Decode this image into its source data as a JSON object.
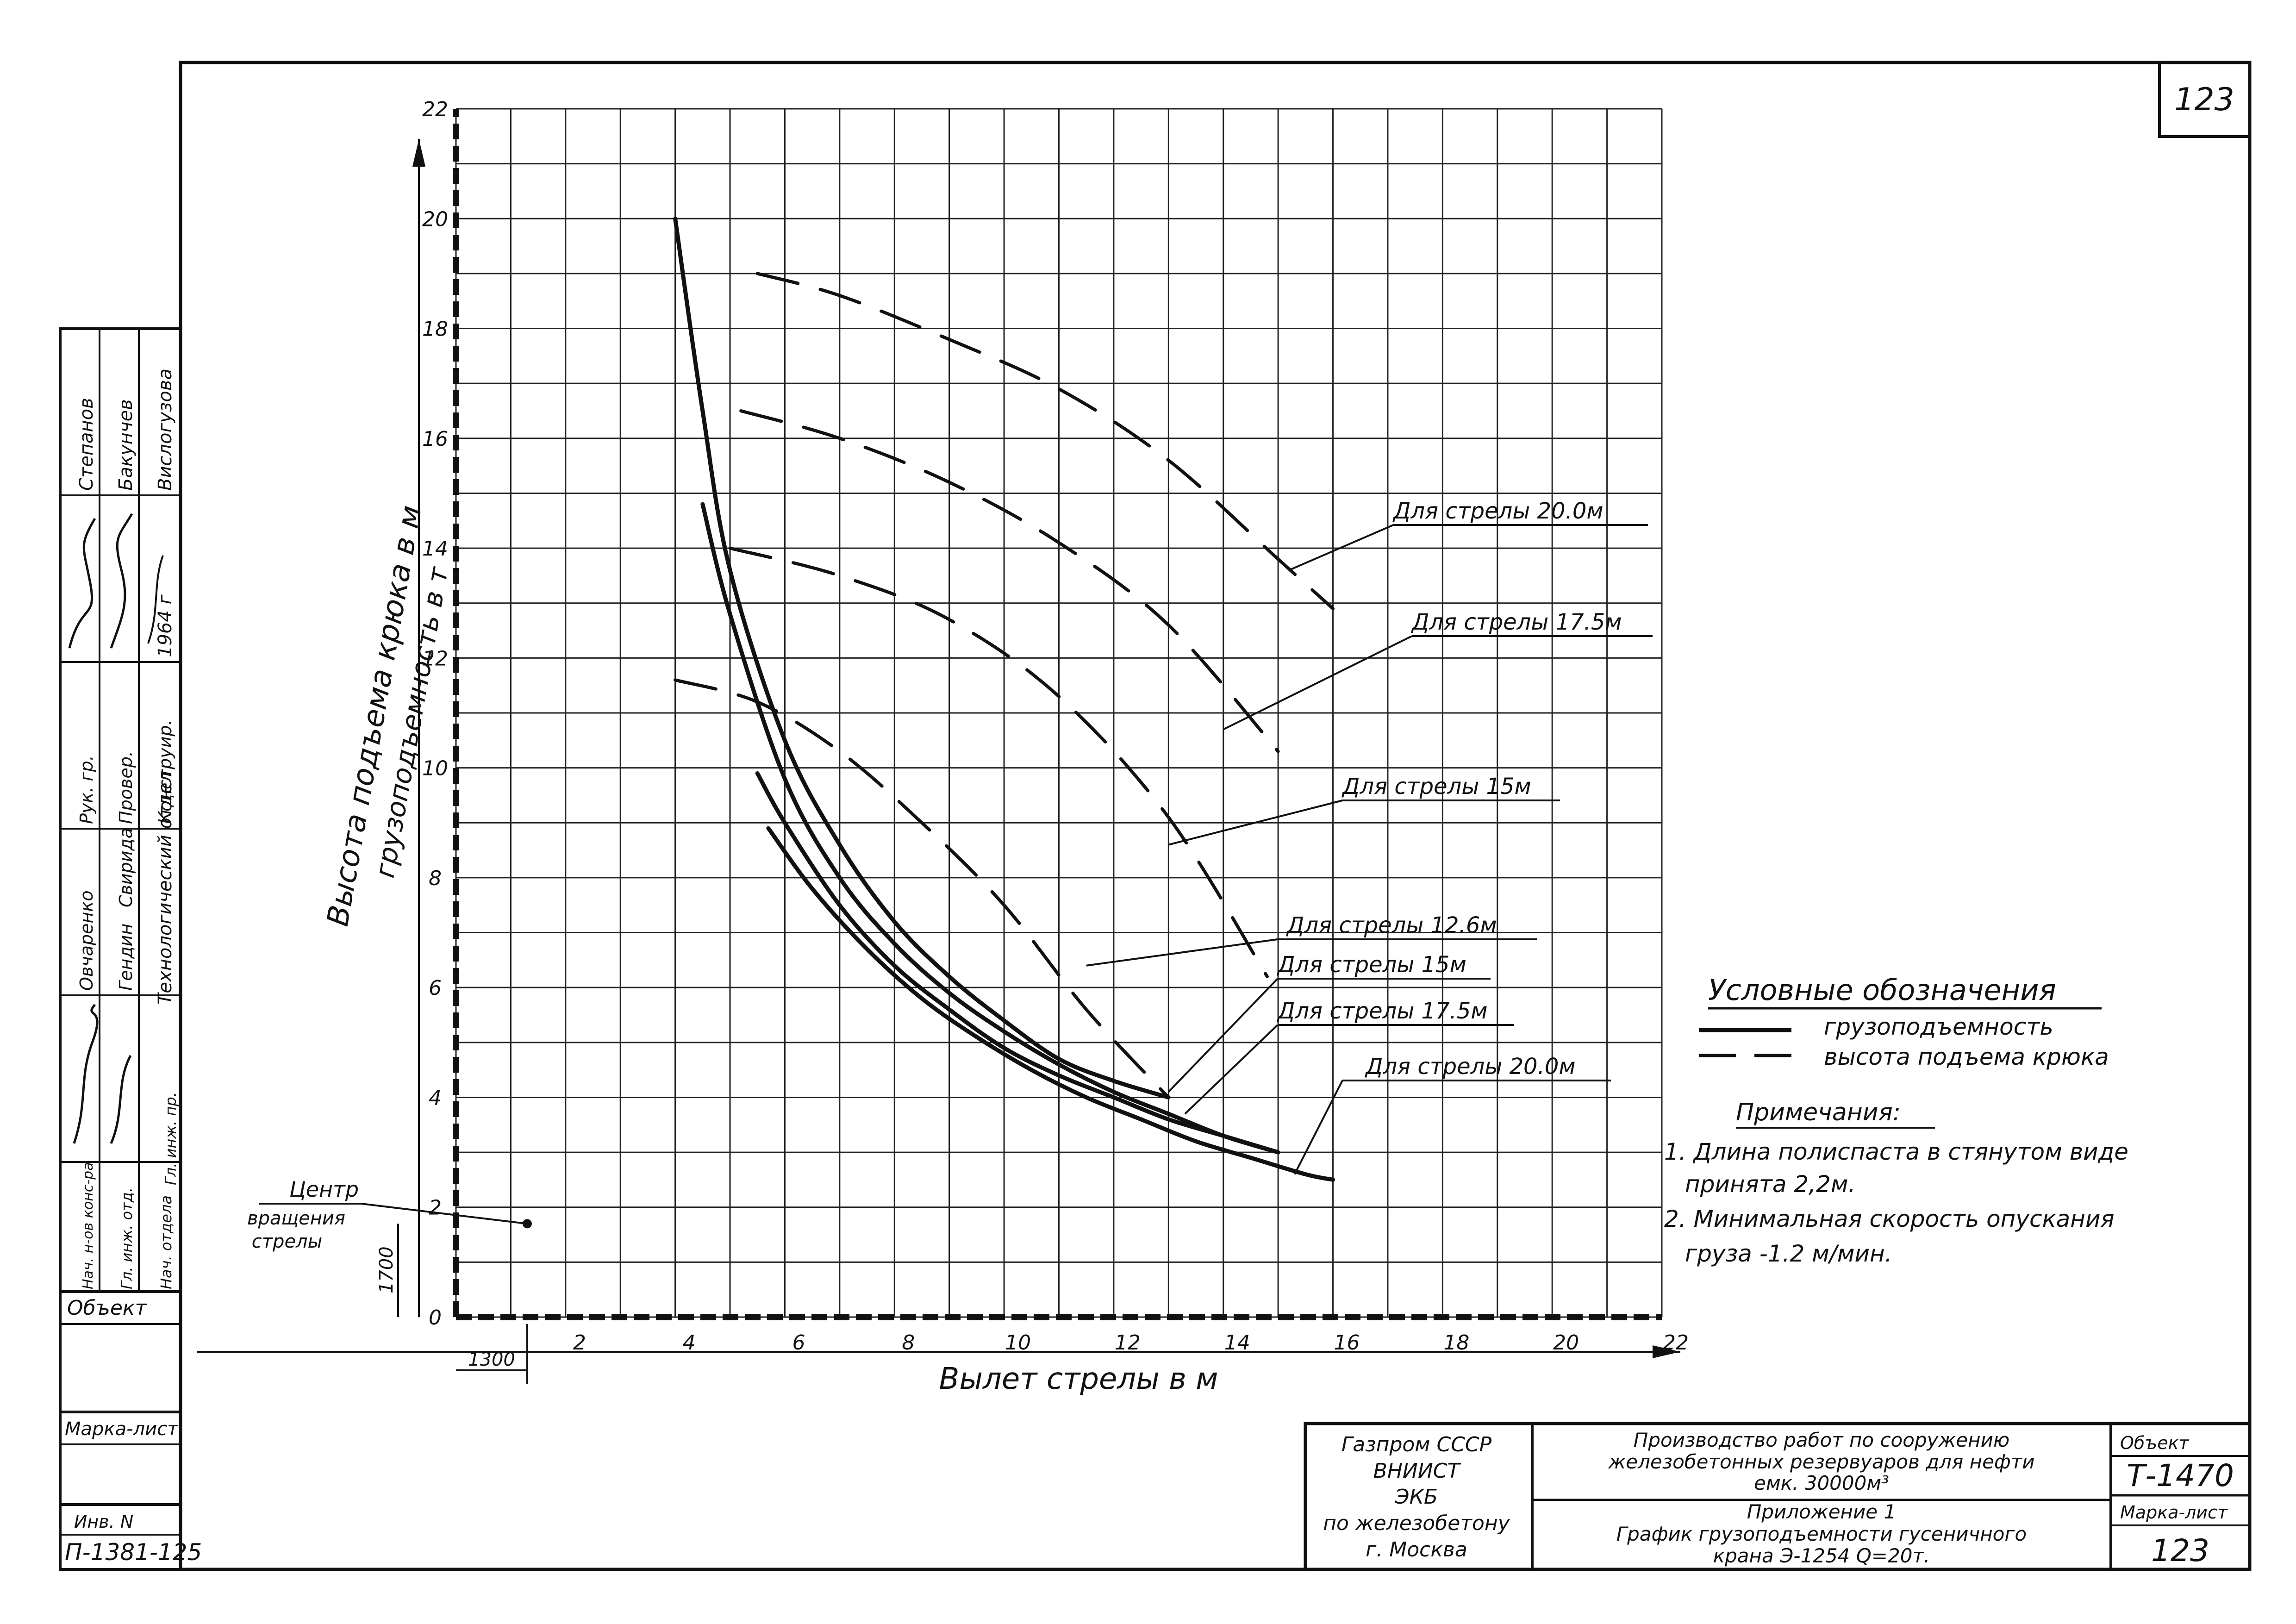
{
  "sheet_number": "123",
  "chart_data": {
    "type": "line",
    "xlabel": "Вылет стрелы в м",
    "ylabel_line1": "Высота подъема крюка в м",
    "ylabel_line2": "грузоподъемность в т",
    "xlim": [
      0,
      22
    ],
    "ylim": [
      0,
      22
    ],
    "grid": true,
    "x_ticks": [
      2,
      4,
      6,
      8,
      10,
      12,
      14,
      16,
      18,
      20,
      22
    ],
    "y_ticks": [
      0,
      2,
      4,
      6,
      8,
      10,
      12,
      14,
      16,
      18,
      20,
      22
    ],
    "dim_x_label": "1300",
    "dim_y_label": "1700",
    "rotation_center": {
      "label_line1": "Центр",
      "label_line2": "вращения",
      "label_line3": "стрелы",
      "x": 1.3,
      "y": 1.7
    },
    "series": [
      {
        "name": "Для стрелы 20.0м",
        "kind": "hook_height",
        "style": "dashed",
        "x": [
          5.5,
          7,
          9,
          11,
          13,
          15,
          16
        ],
        "y": [
          19.0,
          18.6,
          17.8,
          16.9,
          15.6,
          13.8,
          12.9
        ]
      },
      {
        "name": "Для стрелы 17.5м",
        "kind": "hook_height",
        "style": "dashed",
        "x": [
          5.2,
          7,
          9,
          11,
          13,
          15
        ],
        "y": [
          16.5,
          16.0,
          15.2,
          14.1,
          12.6,
          10.3
        ]
      },
      {
        "name": "Для стрелы 15м",
        "kind": "hook_height",
        "style": "dashed",
        "x": [
          5.0,
          7,
          9,
          11,
          13,
          14.8
        ],
        "y": [
          14.0,
          13.5,
          12.7,
          11.3,
          9.1,
          6.2
        ]
      },
      {
        "name": "Для стрелы 12.6м",
        "kind": "hook_height",
        "style": "dashed",
        "x": [
          4.0,
          5.5,
          7.0,
          8.5,
          10.0,
          11.5,
          13.0
        ],
        "y": [
          11.6,
          11.2,
          10.3,
          9.0,
          7.5,
          5.6,
          4.0
        ]
      },
      {
        "name": "Для стрелы 12.6м",
        "kind": "capacity",
        "style": "solid",
        "x": [
          4.0,
          4.5,
          5.0,
          6.0,
          7.0,
          8.0,
          9.0,
          10.0,
          11.0,
          12.0,
          13.0
        ],
        "y": [
          20.0,
          16.5,
          13.6,
          10.5,
          8.6,
          7.2,
          6.2,
          5.4,
          4.7,
          4.3,
          4.0
        ]
      },
      {
        "name": "Для стрелы 15м",
        "kind": "capacity",
        "style": "solid",
        "x": [
          4.5,
          5.0,
          6.0,
          7.0,
          8.0,
          9.0,
          10.0,
          11.0,
          12.0,
          13.0,
          14.0,
          15.0
        ],
        "y": [
          14.8,
          12.8,
          9.8,
          8.0,
          6.8,
          5.9,
          5.2,
          4.6,
          4.1,
          3.7,
          3.3,
          3.0
        ]
      },
      {
        "name": "Для стрелы 17.5м",
        "kind": "capacity",
        "style": "solid",
        "x": [
          5.5,
          6.0,
          7.0,
          8.0,
          9.0,
          10.0,
          11.0,
          12.0,
          13.0,
          14.0,
          15.0
        ],
        "y": [
          9.9,
          9.0,
          7.5,
          6.4,
          5.6,
          4.9,
          4.4,
          4.0,
          3.6,
          3.3,
          3.0
        ]
      },
      {
        "name": "Для стрелы 20.0м",
        "kind": "capacity",
        "style": "solid",
        "x": [
          5.7,
          6.5,
          7.5,
          8.5,
          9.5,
          10.5,
          11.5,
          12.5,
          13.5,
          14.5,
          15.5,
          16.0
        ],
        "y": [
          8.9,
          7.8,
          6.7,
          5.8,
          5.1,
          4.5,
          4.0,
          3.6,
          3.2,
          2.9,
          2.6,
          2.5
        ]
      }
    ],
    "callouts": [
      {
        "text": "Для стрелы 20.0м"
      },
      {
        "text": "Для стрелы 17.5м"
      },
      {
        "text": "Для стрелы 15м"
      },
      {
        "text": "Для стрелы 12.6м"
      },
      {
        "text": "Для стрелы 15м"
      },
      {
        "text": "Для стрелы 17.5м"
      },
      {
        "text": "Для стрелы 20.0м"
      }
    ]
  },
  "legend": {
    "title": "Условные обозначения",
    "solid_label": "грузоподъемность",
    "dashed_label": "высота подъема крюка"
  },
  "notes": {
    "title": "Примечания:",
    "items": [
      "1. Длина полиспаста в стянутом виде",
      "принята 2,2м.",
      "2. Минимальная скорость опускания",
      "груза -1.2 м/мин."
    ]
  },
  "stamp": {
    "col1": [
      "Газпром СССР",
      "ВНИИСТ",
      "ЭКБ",
      "по железобетону",
      "г. Москва"
    ],
    "title_lines": [
      "Производство работ по сооружению",
      "железобетонных резервуаров для нефти",
      "емк. 30000м³"
    ],
    "appendix": "Приложение 1",
    "subtitle_lines": [
      "График грузоподъемности гусеничного",
      "крана Э-1254 Q=20т."
    ],
    "object_label": "Объект",
    "object_value": "Т-1470",
    "mark_label": "Марка-лист",
    "mark_value": "123"
  },
  "side_stamp": {
    "rows": [
      {
        "role": "Рук. гр.",
        "name": "Степанов"
      },
      {
        "role": "Провер.",
        "name": "Бакунчев"
      },
      {
        "role": "Конструир.",
        "name": "Вислогузова"
      },
      {
        "role": "Нач. отдела",
        "name": "Гендин"
      },
      {
        "role": "Гл. инж. отд.",
        "name": "Свирида"
      },
      {
        "role": "Нач. н-ов конс-ра",
        "name": "Овчаренко"
      }
    ],
    "year": "1964 г",
    "dept": "Технологический отдел",
    "role_last": "Гл. инж. пр.",
    "object_label": "Объект",
    "mark_label": "Марка-лист",
    "inv_label": "Инв. N",
    "inv_value": "П-1381-125"
  }
}
